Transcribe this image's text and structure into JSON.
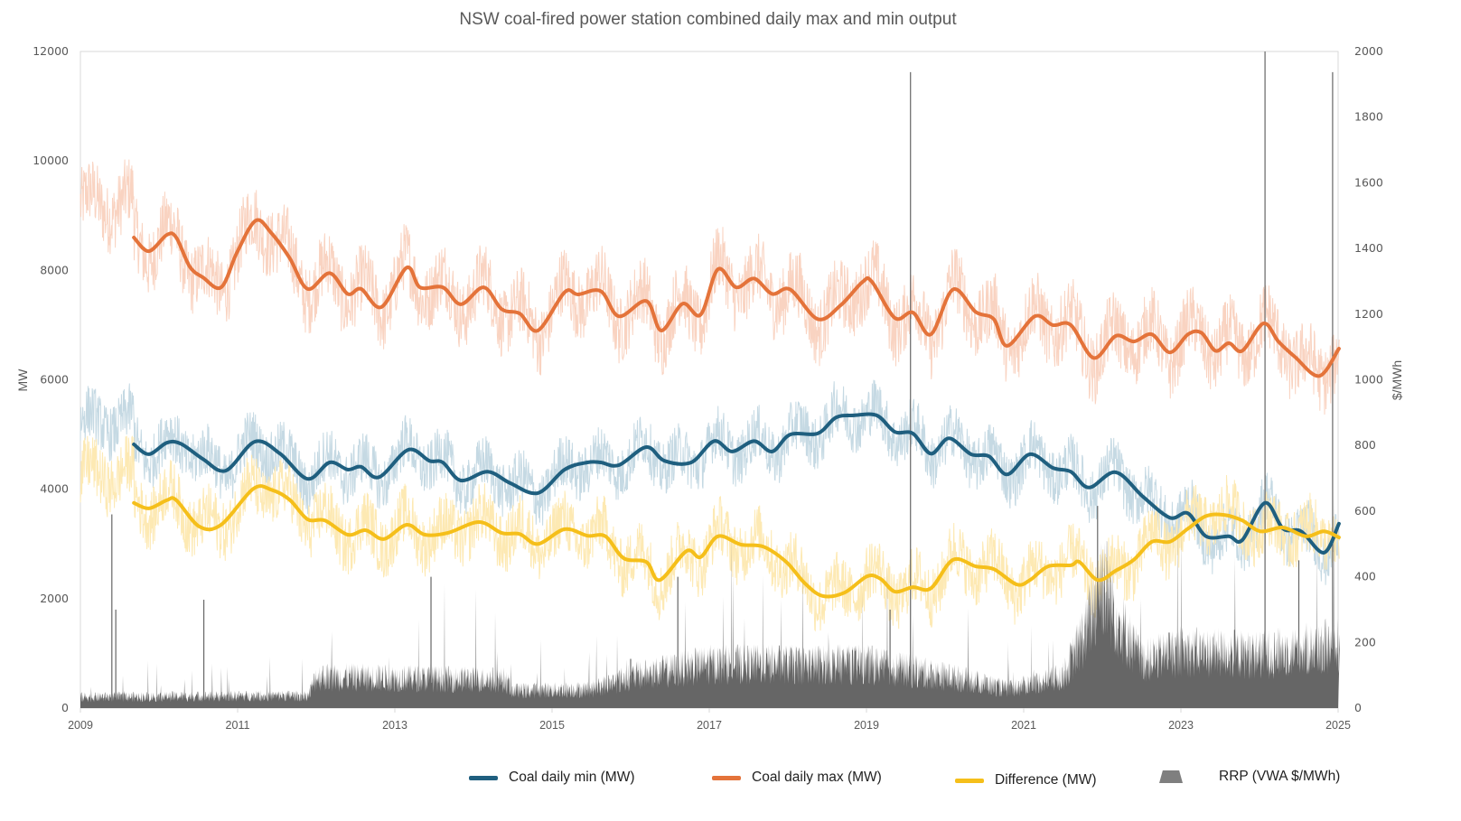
{
  "chart_data": {
    "type": "line",
    "title": "NSW coal-fired power station combined daily max and min output",
    "ylabel": "MW",
    "y2label": "$/MWh",
    "xlabel": "",
    "xlim": [
      2009,
      2025
    ],
    "ylim": [
      0,
      12000
    ],
    "y2lim": [
      0,
      2000
    ],
    "xticks": [
      "2009",
      "2011",
      "2013",
      "2015",
      "2017",
      "2019",
      "2021",
      "2023",
      "2025"
    ],
    "yticks": [
      "0",
      "2000",
      "4000",
      "6000",
      "8000",
      "10000",
      "12000"
    ],
    "y2ticks": [
      "0",
      "200",
      "400",
      "600",
      "800",
      "1000",
      "1200",
      "1400",
      "1600",
      "1800",
      "2000"
    ],
    "grid": false,
    "legend_position": "bottom",
    "colors": {
      "min": "#1f5f7f",
      "max": "#e4733a",
      "diff": "#f5bf1a",
      "rrp": "#666666",
      "min_raw": "#c5d9e3",
      "max_raw": "#f9d3c1",
      "diff_raw": "#fde9b3"
    },
    "series": [
      {
        "key": "min",
        "name": "Coal daily min (MW)",
        "axis": "left",
        "points": [
          [
            2009.68,
            4820
          ],
          [
            2009.87,
            4640
          ],
          [
            2010.1,
            4850
          ],
          [
            2010.28,
            4830
          ],
          [
            2010.56,
            4550
          ],
          [
            2010.85,
            4340
          ],
          [
            2011.22,
            4870
          ],
          [
            2011.54,
            4650
          ],
          [
            2011.89,
            4190
          ],
          [
            2012.17,
            4490
          ],
          [
            2012.4,
            4360
          ],
          [
            2012.57,
            4410
          ],
          [
            2012.8,
            4220
          ],
          [
            2013.17,
            4720
          ],
          [
            2013.44,
            4520
          ],
          [
            2013.61,
            4490
          ],
          [
            2013.84,
            4160
          ],
          [
            2014.18,
            4320
          ],
          [
            2014.47,
            4110
          ],
          [
            2014.82,
            3930
          ],
          [
            2015.16,
            4360
          ],
          [
            2015.45,
            4490
          ],
          [
            2015.62,
            4490
          ],
          [
            2015.85,
            4440
          ],
          [
            2016.2,
            4770
          ],
          [
            2016.43,
            4520
          ],
          [
            2016.77,
            4490
          ],
          [
            2017.06,
            4880
          ],
          [
            2017.29,
            4690
          ],
          [
            2017.57,
            4880
          ],
          [
            2017.8,
            4690
          ],
          [
            2018.03,
            5000
          ],
          [
            2018.38,
            5020
          ],
          [
            2018.61,
            5310
          ],
          [
            2018.84,
            5350
          ],
          [
            2019.13,
            5350
          ],
          [
            2019.36,
            5050
          ],
          [
            2019.59,
            5020
          ],
          [
            2019.82,
            4650
          ],
          [
            2020.05,
            4930
          ],
          [
            2020.33,
            4640
          ],
          [
            2020.56,
            4600
          ],
          [
            2020.79,
            4270
          ],
          [
            2021.08,
            4640
          ],
          [
            2021.37,
            4390
          ],
          [
            2021.6,
            4320
          ],
          [
            2021.83,
            4030
          ],
          [
            2022.17,
            4310
          ],
          [
            2022.52,
            3860
          ],
          [
            2022.86,
            3480
          ],
          [
            2023.09,
            3560
          ],
          [
            2023.32,
            3140
          ],
          [
            2023.61,
            3140
          ],
          [
            2023.78,
            3070
          ],
          [
            2024.07,
            3750
          ],
          [
            2024.3,
            3280
          ],
          [
            2024.53,
            3230
          ],
          [
            2024.82,
            2840
          ],
          [
            2025.01,
            3370
          ]
        ]
      },
      {
        "key": "max",
        "name": "Coal daily max (MW)",
        "axis": "left",
        "points": [
          [
            2009.68,
            8600
          ],
          [
            2009.87,
            8350
          ],
          [
            2010.1,
            8650
          ],
          [
            2010.22,
            8600
          ],
          [
            2010.39,
            8070
          ],
          [
            2010.56,
            7870
          ],
          [
            2010.79,
            7690
          ],
          [
            2010.99,
            8320
          ],
          [
            2011.23,
            8910
          ],
          [
            2011.43,
            8680
          ],
          [
            2011.66,
            8230
          ],
          [
            2011.89,
            7660
          ],
          [
            2012.17,
            7950
          ],
          [
            2012.4,
            7570
          ],
          [
            2012.57,
            7660
          ],
          [
            2012.83,
            7330
          ],
          [
            2013.15,
            8050
          ],
          [
            2013.32,
            7690
          ],
          [
            2013.61,
            7690
          ],
          [
            2013.84,
            7380
          ],
          [
            2014.13,
            7690
          ],
          [
            2014.36,
            7290
          ],
          [
            2014.59,
            7210
          ],
          [
            2014.82,
            6900
          ],
          [
            2015.16,
            7600
          ],
          [
            2015.33,
            7560
          ],
          [
            2015.62,
            7620
          ],
          [
            2015.85,
            7160
          ],
          [
            2016.2,
            7440
          ],
          [
            2016.39,
            6900
          ],
          [
            2016.66,
            7390
          ],
          [
            2016.89,
            7190
          ],
          [
            2017.11,
            8020
          ],
          [
            2017.34,
            7690
          ],
          [
            2017.57,
            7850
          ],
          [
            2017.8,
            7570
          ],
          [
            2018.03,
            7650
          ],
          [
            2018.38,
            7110
          ],
          [
            2018.67,
            7360
          ],
          [
            2018.95,
            7790
          ],
          [
            2019.07,
            7790
          ],
          [
            2019.36,
            7130
          ],
          [
            2019.59,
            7230
          ],
          [
            2019.82,
            6830
          ],
          [
            2020.1,
            7650
          ],
          [
            2020.39,
            7240
          ],
          [
            2020.62,
            7110
          ],
          [
            2020.79,
            6620
          ],
          [
            2021.14,
            7160
          ],
          [
            2021.37,
            7000
          ],
          [
            2021.6,
            7000
          ],
          [
            2021.89,
            6400
          ],
          [
            2022.17,
            6800
          ],
          [
            2022.4,
            6700
          ],
          [
            2022.63,
            6830
          ],
          [
            2022.86,
            6500
          ],
          [
            2023.09,
            6830
          ],
          [
            2023.26,
            6860
          ],
          [
            2023.44,
            6530
          ],
          [
            2023.61,
            6670
          ],
          [
            2023.78,
            6530
          ],
          [
            2024.05,
            7030
          ],
          [
            2024.24,
            6700
          ],
          [
            2024.45,
            6420
          ],
          [
            2024.76,
            6070
          ],
          [
            2025.01,
            6570
          ]
        ]
      },
      {
        "key": "diff",
        "name": "Difference (MW)",
        "axis": "left",
        "points": [
          [
            2009.68,
            3750
          ],
          [
            2009.87,
            3650
          ],
          [
            2010.1,
            3800
          ],
          [
            2010.22,
            3800
          ],
          [
            2010.51,
            3320
          ],
          [
            2010.79,
            3350
          ],
          [
            2011.2,
            4010
          ],
          [
            2011.43,
            3990
          ],
          [
            2011.66,
            3810
          ],
          [
            2011.89,
            3450
          ],
          [
            2012.11,
            3430
          ],
          [
            2012.4,
            3170
          ],
          [
            2012.63,
            3250
          ],
          [
            2012.86,
            3090
          ],
          [
            2013.15,
            3350
          ],
          [
            2013.38,
            3170
          ],
          [
            2013.67,
            3200
          ],
          [
            2014.07,
            3400
          ],
          [
            2014.36,
            3200
          ],
          [
            2014.59,
            3180
          ],
          [
            2014.82,
            3000
          ],
          [
            2015.16,
            3270
          ],
          [
            2015.45,
            3150
          ],
          [
            2015.68,
            3140
          ],
          [
            2015.91,
            2740
          ],
          [
            2016.2,
            2670
          ],
          [
            2016.37,
            2340
          ],
          [
            2016.71,
            2870
          ],
          [
            2016.89,
            2760
          ],
          [
            2017.11,
            3140
          ],
          [
            2017.4,
            2990
          ],
          [
            2017.69,
            2950
          ],
          [
            2017.98,
            2670
          ],
          [
            2018.21,
            2290
          ],
          [
            2018.44,
            2050
          ],
          [
            2018.72,
            2110
          ],
          [
            2019.01,
            2410
          ],
          [
            2019.18,
            2360
          ],
          [
            2019.36,
            2130
          ],
          [
            2019.59,
            2210
          ],
          [
            2019.82,
            2190
          ],
          [
            2020.1,
            2710
          ],
          [
            2020.39,
            2590
          ],
          [
            2020.62,
            2540
          ],
          [
            2020.91,
            2260
          ],
          [
            2021.08,
            2340
          ],
          [
            2021.31,
            2590
          ],
          [
            2021.6,
            2610
          ],
          [
            2021.71,
            2670
          ],
          [
            2021.94,
            2340
          ],
          [
            2022.17,
            2510
          ],
          [
            2022.4,
            2710
          ],
          [
            2022.63,
            3040
          ],
          [
            2022.86,
            3040
          ],
          [
            2023.09,
            3280
          ],
          [
            2023.32,
            3510
          ],
          [
            2023.55,
            3530
          ],
          [
            2023.78,
            3430
          ],
          [
            2024.01,
            3230
          ],
          [
            2024.3,
            3300
          ],
          [
            2024.59,
            3140
          ],
          [
            2024.82,
            3230
          ],
          [
            2025.01,
            3120
          ]
        ]
      },
      {
        "key": "rrp",
        "name": "RRP (VWA $/MWh)",
        "axis": "right",
        "type": "area",
        "baseline": [
          [
            2009,
            35
          ],
          [
            2011.9,
            40
          ],
          [
            2012,
            100
          ],
          [
            2014.4,
            90
          ],
          [
            2014.5,
            55
          ],
          [
            2015.5,
            60
          ],
          [
            2016,
            100
          ],
          [
            2017,
            140
          ],
          [
            2019,
            140
          ],
          [
            2020.3,
            90
          ],
          [
            2020.8,
            60
          ],
          [
            2021.5,
            100
          ],
          [
            2021.8,
            250
          ],
          [
            2022,
            420
          ],
          [
            2022.2,
            280
          ],
          [
            2022.5,
            150
          ],
          [
            2023,
            180
          ],
          [
            2024,
            170
          ],
          [
            2025,
            200
          ]
        ],
        "spikes": [
          [
            2009.4,
            590
          ],
          [
            2009.45,
            300
          ],
          [
            2010.57,
            330
          ],
          [
            2013.46,
            400
          ],
          [
            2016.6,
            400
          ],
          [
            2016.0,
            150
          ],
          [
            2019.3,
            300
          ],
          [
            2019.56,
            1937
          ],
          [
            2021.94,
            616
          ],
          [
            2022.85,
            230
          ],
          [
            2024.07,
            2000
          ],
          [
            2024.5,
            450
          ],
          [
            2024.93,
            1937
          ]
        ]
      }
    ]
  }
}
